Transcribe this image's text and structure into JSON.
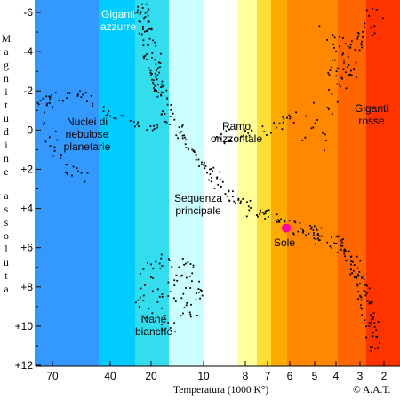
{
  "chart_data": {
    "type": "scatter",
    "title": "",
    "xlabel": "Temperatura (1000 K°)",
    "ylabel": "Magnitudine assoluta",
    "copyright": "© A.A.T.",
    "x_ticks": [
      "70",
      "40",
      "20",
      "10",
      "8",
      "7",
      "6",
      "5",
      "4",
      "3",
      "2"
    ],
    "y_ticks": [
      "-6",
      "-4",
      "-2",
      "0",
      "+2",
      "+4",
      "+6",
      "+8",
      "+10",
      "+12"
    ],
    "ylim": [
      -6.6,
      12
    ],
    "grid": false,
    "background_color_bands": [
      "#3399ff",
      "#00ccff",
      "#33ddee",
      "#ccffff",
      "#ffffff",
      "#ffff99",
      "#ffdd33",
      "#ffaa00",
      "#ff8800",
      "#ff6600",
      "#ff3300"
    ],
    "sun_marker": {
      "label": "Sole",
      "x": "6",
      "y": 5,
      "color": "#ff00aa"
    },
    "annotations": [
      {
        "id": "giganti-azzurre",
        "text": "Giganti\nazzurre"
      },
      {
        "id": "giganti-rosse",
        "text": "Giganti\nrosse"
      },
      {
        "id": "ramo-orizzontale",
        "text": "Ramo\norizzontale"
      },
      {
        "id": "nuclei",
        "text": "Nuclei di\nnebulose\nplanetarie"
      },
      {
        "id": "sequenza",
        "text": "Sequenza\nprincipale"
      },
      {
        "id": "sole",
        "text": "Sole"
      },
      {
        "id": "nane-bianche",
        "text": "Nane\nbianche"
      }
    ]
  }
}
